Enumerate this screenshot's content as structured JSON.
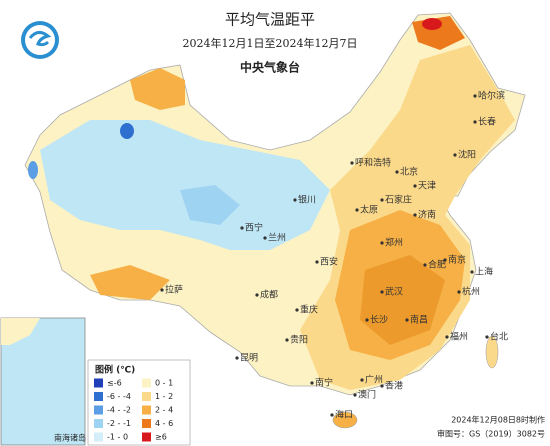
{
  "header": {
    "title": "平均气温距平",
    "subtitle": "2024年12月1日至2024年12月7日",
    "agency": "中央气象台"
  },
  "legend": {
    "title": "图例 (℃)",
    "items": [
      {
        "label": "≤-6",
        "color": "#1f3fb8"
      },
      {
        "label": "-6 - -4",
        "color": "#2f6fd0"
      },
      {
        "label": "-4 - -2",
        "color": "#5b9ee6"
      },
      {
        "label": "-2 - -1",
        "color": "#9fd3f2"
      },
      {
        "label": "-1 - 0",
        "color": "#d3eef8"
      },
      {
        "label": "0 - 1",
        "color": "#fdf2c4"
      },
      {
        "label": "1 - 2",
        "color": "#fbd98a"
      },
      {
        "label": "2 - 4",
        "color": "#f6b045"
      },
      {
        "label": "4 - 6",
        "color": "#ec7a1c"
      },
      {
        "label": "≥6",
        "color": "#d7191c"
      }
    ]
  },
  "cities": [
    "哈尔滨",
    "长春",
    "沈阳",
    "呼和浩特",
    "北京",
    "天津",
    "石家庄",
    "太原",
    "济南",
    "银川",
    "西宁",
    "兰州",
    "郑州",
    "西安",
    "合肥",
    "南京",
    "上海",
    "武汉",
    "杭州",
    "拉萨",
    "成都",
    "重庆",
    "长沙",
    "南昌",
    "福州",
    "台北",
    "贵阳",
    "昆明",
    "南宁",
    "广州",
    "香港",
    "澳门",
    "海口"
  ],
  "inset": {
    "label": "南海诸岛"
  },
  "footer": {
    "made": "2024年12月08日8时制作",
    "approval": "审图号：GS（2019）3082号"
  }
}
